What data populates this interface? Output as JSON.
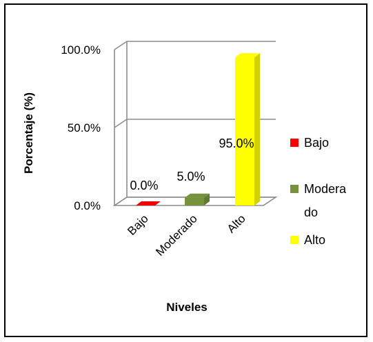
{
  "chart_data": {
    "type": "bar",
    "categories": [
      "Bajo",
      "Moderado",
      "Alto"
    ],
    "values": [
      0.0,
      5.0,
      95.0
    ],
    "value_labels": [
      "0.0%",
      "5.0%",
      "95.0%"
    ],
    "colors": [
      "#ff0000",
      "#76923c",
      "#ffff00"
    ],
    "title": "",
    "xlabel": "Niveles",
    "ylabel": "Porcentaje (%)",
    "ylim": [
      0,
      100
    ],
    "yticks": [
      "0.0%",
      "50.0%",
      "100.0%"
    ],
    "grid": true,
    "three_d": true,
    "legend": {
      "placement": "right",
      "entries": [
        {
          "label_lines": [
            "Bajo"
          ],
          "color": "#ff0000"
        },
        {
          "label_lines": [
            "Modera",
            "do"
          ],
          "color": "#76923c"
        },
        {
          "label_lines": [
            "Alto"
          ],
          "color": "#ffff00"
        }
      ]
    }
  }
}
